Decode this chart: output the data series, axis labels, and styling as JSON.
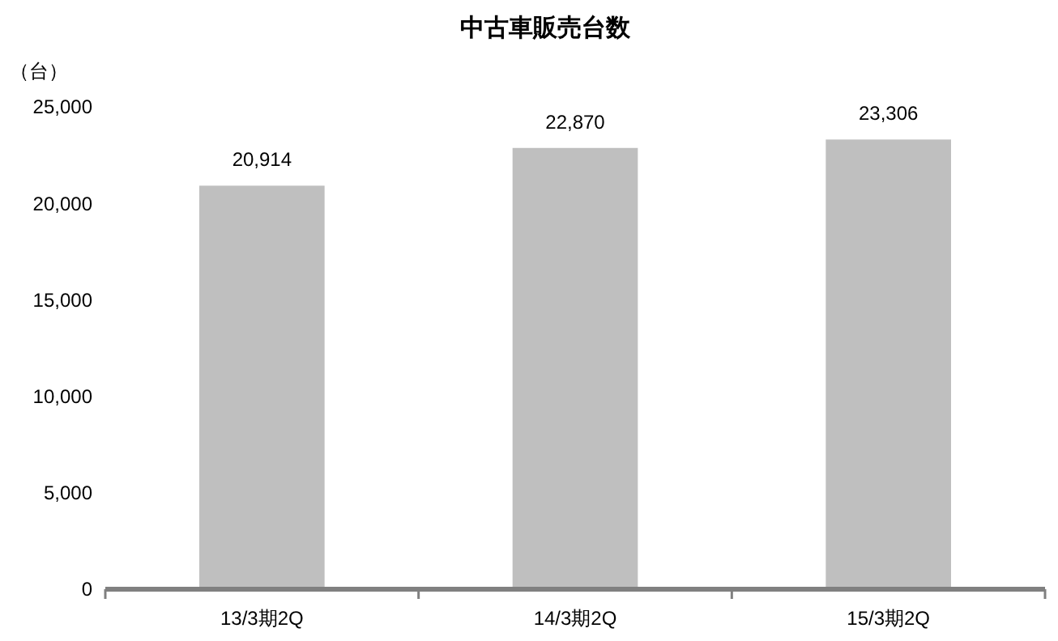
{
  "chart_data": {
    "type": "bar",
    "title": "中古車販売台数",
    "ylabel": "（台）",
    "categories": [
      "13/3期2Q",
      "14/3期2Q",
      "15/3期2Q"
    ],
    "values": [
      20914,
      22870,
      23306
    ],
    "color": "#bfbfbf",
    "ylim": [
      0,
      25000
    ],
    "yticks": [
      {
        "value": 0,
        "label": "0"
      },
      {
        "value": 5000,
        "label": "5,000"
      },
      {
        "value": 10000,
        "label": "10,000"
      },
      {
        "value": 15000,
        "label": "15,000"
      },
      {
        "value": 20000,
        "label": "20,000"
      },
      {
        "value": 25000,
        "label": "25,000"
      }
    ],
    "value_labels": [
      "20,914",
      "22,870",
      "23,306"
    ]
  }
}
